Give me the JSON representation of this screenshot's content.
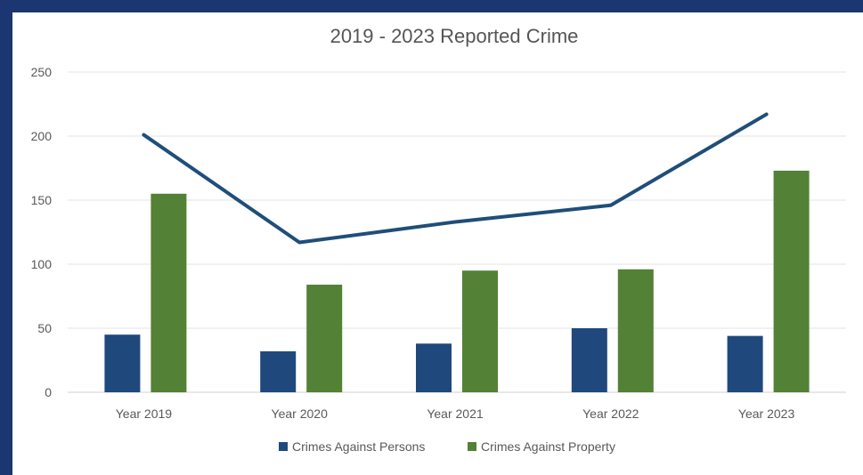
{
  "chart_data": {
    "type": "bar",
    "title": "2019 - 2023 Reported Crime",
    "xlabel": "",
    "ylabel": "",
    "ylim": [
      0,
      250
    ],
    "yticks": [
      "0",
      "50",
      "100",
      "150",
      "200",
      "250"
    ],
    "categories": [
      "Year 2019",
      "Year 2020",
      "Year 2021",
      "Year 2022",
      "Year 2023"
    ],
    "series": [
      {
        "name": "Crimes Against Persons",
        "kind": "bar",
        "color": "#1f497d",
        "values": [
          45,
          32,
          38,
          50,
          44
        ]
      },
      {
        "name": "Crimes Against Property",
        "kind": "bar",
        "color": "#538135",
        "values": [
          155,
          84,
          95,
          96,
          173
        ]
      },
      {
        "kind": "line",
        "color": "#1f4e79",
        "values": [
          201,
          117,
          133,
          146,
          217
        ]
      }
    ],
    "grid": true,
    "legend": "bottom"
  }
}
